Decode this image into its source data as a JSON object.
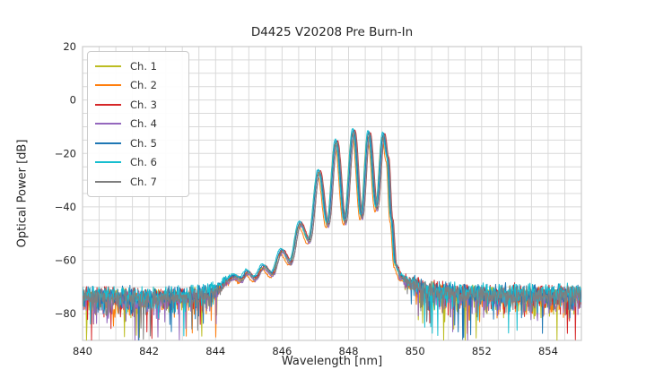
{
  "chart_data": {
    "type": "line",
    "title": "D4425 V20208 Pre Burn-In",
    "xlabel": "Wavelength [nm]",
    "ylabel": "Optical Power [dB]",
    "xlim": [
      840,
      855
    ],
    "ylim": [
      -90,
      20
    ],
    "xticks": [
      840,
      842,
      844,
      846,
      848,
      850,
      852,
      854
    ],
    "yticks": [
      20,
      0,
      -20,
      -40,
      -60,
      -80
    ],
    "grid": {
      "on": true,
      "minor_x_step_nm": 0.5,
      "minor_y_step_db": 5,
      "color": "#d9d9d9",
      "spine_color": "#cccccc"
    },
    "legend": {
      "position": "upper-left"
    },
    "sample_step_nm": 0.015,
    "series": [
      {
        "label": "Ch. 1",
        "color": "#bcbd22",
        "x_shift_nm": -0.02,
        "y_offset_db": 0.0,
        "seed": 101
      },
      {
        "label": "Ch. 2",
        "color": "#ff7f0e",
        "x_shift_nm": -0.055,
        "y_offset_db": -0.8,
        "seed": 202
      },
      {
        "label": "Ch. 3",
        "color": "#d62728",
        "x_shift_nm": 0.03,
        "y_offset_db": 0.6,
        "seed": 303
      },
      {
        "label": "Ch. 4",
        "color": "#9467bd",
        "x_shift_nm": 0.012,
        "y_offset_db": -0.6,
        "seed": 404
      },
      {
        "label": "Ch. 5",
        "color": "#1f77b4",
        "x_shift_nm": -0.012,
        "y_offset_db": 0.8,
        "seed": 505
      },
      {
        "label": "Ch. 6",
        "color": "#17becf",
        "x_shift_nm": -0.04,
        "y_offset_db": 1.2,
        "seed": 606
      },
      {
        "label": "Ch. 7",
        "color": "#7f7f7f",
        "x_shift_nm": 0.022,
        "y_offset_db": 0.0,
        "seed": 707
      }
    ],
    "envelope_db": [
      [
        840.0,
        -73.5
      ],
      [
        841.0,
        -74.0
      ],
      [
        842.0,
        -74.0
      ],
      [
        843.0,
        -73.5
      ],
      [
        843.6,
        -73.0
      ],
      [
        844.0,
        -71.5
      ],
      [
        844.35,
        -67.8
      ],
      [
        844.55,
        -66.3
      ],
      [
        844.78,
        -67.4
      ],
      [
        844.95,
        -64.6
      ],
      [
        845.18,
        -67.0
      ],
      [
        845.45,
        -62.6
      ],
      [
        845.7,
        -65.4
      ],
      [
        846.0,
        -56.6
      ],
      [
        846.26,
        -61.0
      ],
      [
        846.55,
        -46.5
      ],
      [
        846.82,
        -53.0
      ],
      [
        847.12,
        -27.0
      ],
      [
        847.38,
        -47.0
      ],
      [
        847.64,
        -15.8
      ],
      [
        847.9,
        -46.0
      ],
      [
        848.16,
        -11.8
      ],
      [
        848.4,
        -44.0
      ],
      [
        848.62,
        -12.6
      ],
      [
        848.85,
        -41.0
      ],
      [
        849.06,
        -13.2
      ],
      [
        849.18,
        -22.0
      ],
      [
        849.3,
        -45.0
      ],
      [
        849.42,
        -62.0
      ],
      [
        849.58,
        -66.5
      ],
      [
        849.85,
        -68.5
      ],
      [
        850.3,
        -71.0
      ],
      [
        851.2,
        -72.5
      ],
      [
        853.0,
        -73.0
      ],
      [
        855.0,
        -73.0
      ]
    ],
    "noise_halfwidth_db": [
      [
        840.0,
        4.2
      ],
      [
        843.8,
        3.6
      ],
      [
        844.2,
        1.5
      ],
      [
        844.5,
        0.5
      ],
      [
        845.0,
        0.35
      ],
      [
        848.8,
        0.3
      ],
      [
        849.3,
        0.25
      ],
      [
        849.55,
        0.8
      ],
      [
        849.8,
        2.5
      ],
      [
        850.2,
        3.8
      ],
      [
        855.0,
        4.2
      ]
    ]
  }
}
